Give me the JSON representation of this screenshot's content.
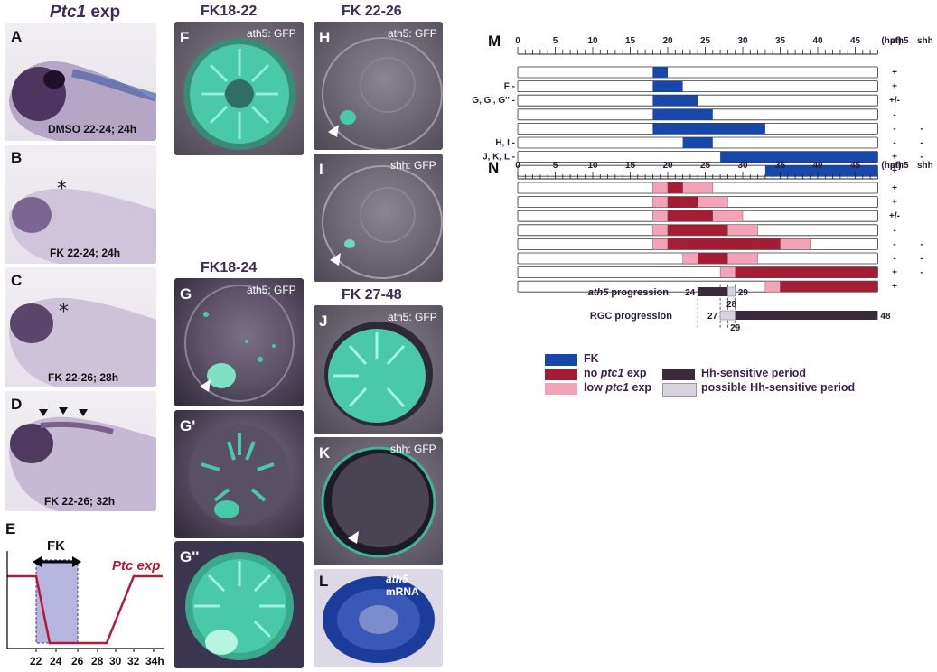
{
  "column_a": {
    "title_gene": "Ptc1",
    "title_rest": " exp"
  },
  "panels_a_d": [
    {
      "letter": "A",
      "caption": "DMSO 22-24; 24h"
    },
    {
      "letter": "B",
      "caption": "FK 22-24; 24h"
    },
    {
      "letter": "C",
      "caption": "FK 22-26; 28h"
    },
    {
      "letter": "D",
      "caption": "FK 22-26; 32h"
    }
  ],
  "panel_e": {
    "letter": "E",
    "fk_label": "FK",
    "ptc_label": "Ptc exp",
    "ticks": [
      "22",
      "24",
      "26",
      "28",
      "30",
      "32",
      "34h"
    ]
  },
  "column_f": {
    "title": "FK18-22",
    "letter": "F",
    "label": "ath5: GFP"
  },
  "column_g": {
    "title": "FK18-24",
    "letters": [
      "G",
      "G'",
      "G''"
    ],
    "label": "ath5: GFP"
  },
  "column_h": {
    "title": "FK 22-26",
    "h_letter": "H",
    "h_label": "ath5: GFP",
    "i_letter": "I",
    "i_label": "shh: GFP"
  },
  "column_j": {
    "title": "FK 27-48",
    "j_letter": "J",
    "j_label": "ath5: GFP",
    "k_letter": "K",
    "k_label": "shh: GFP",
    "l_letter": "L",
    "l_label_gene": "ath5",
    "l_label_rest": " mRNA"
  },
  "panel_m": {
    "letter": "M",
    "axis_ticks": [
      "0",
      "5",
      "10",
      "15",
      "20",
      "25",
      "30",
      "35",
      "40",
      "45"
    ],
    "axis_unit": "(hpf)",
    "col_headers": [
      "ath5",
      "shh"
    ],
    "row_labels": [
      "",
      "F",
      "G, G', G''",
      "",
      "",
      "H, I",
      "J, K, L",
      ""
    ],
    "rows": [
      {
        "fk": [
          18,
          20
        ],
        "ath5": "+",
        "shh": ""
      },
      {
        "fk": [
          18,
          22
        ],
        "ath5": "+",
        "shh": ""
      },
      {
        "fk": [
          18,
          24
        ],
        "ath5": "+/-",
        "shh": ""
      },
      {
        "fk": [
          18,
          26
        ],
        "ath5": "-",
        "shh": ""
      },
      {
        "fk": [
          18,
          33
        ],
        "ath5": "-",
        "shh": "-"
      },
      {
        "fk": [
          22,
          26
        ],
        "ath5": "-",
        "shh": "-"
      },
      {
        "fk": [
          27,
          48
        ],
        "ath5": "+",
        "shh": "-"
      },
      {
        "fk": [
          33,
          48
        ],
        "ath5": "+",
        "shh": ""
      }
    ]
  },
  "panel_n": {
    "letter": "N",
    "axis_ticks": [
      "0",
      "5",
      "10",
      "15",
      "20",
      "25",
      "30",
      "35",
      "40",
      "45"
    ],
    "axis_unit": "(hpf)",
    "col_headers": [
      "ath5",
      "shh"
    ],
    "rows": [
      {
        "segments": [
          [
            18,
            20,
            "low"
          ],
          [
            20,
            22,
            "no"
          ],
          [
            22,
            26,
            "low"
          ]
        ],
        "ath5": "+",
        "shh": ""
      },
      {
        "segments": [
          [
            18,
            20,
            "low"
          ],
          [
            20,
            24,
            "no"
          ],
          [
            24,
            28,
            "low"
          ]
        ],
        "ath5": "+",
        "shh": ""
      },
      {
        "segments": [
          [
            18,
            20,
            "low"
          ],
          [
            20,
            26,
            "no"
          ],
          [
            26,
            30,
            "low"
          ]
        ],
        "ath5": "+/-",
        "shh": ""
      },
      {
        "segments": [
          [
            18,
            20,
            "low"
          ],
          [
            20,
            28,
            "no"
          ],
          [
            28,
            32,
            "low"
          ]
        ],
        "ath5": "-",
        "shh": ""
      },
      {
        "segments": [
          [
            18,
            20,
            "low"
          ],
          [
            20,
            35,
            "no"
          ],
          [
            35,
            39,
            "low"
          ]
        ],
        "ath5": "-",
        "shh": "-"
      },
      {
        "segments": [
          [
            22,
            24,
            "low"
          ],
          [
            24,
            28,
            "no"
          ],
          [
            28,
            32,
            "low"
          ]
        ],
        "ath5": "-",
        "shh": "-"
      },
      {
        "segments": [
          [
            27,
            29,
            "low"
          ],
          [
            29,
            48,
            "no"
          ]
        ],
        "ath5": "+",
        "shh": "-"
      },
      {
        "segments": [
          [
            33,
            35,
            "low"
          ],
          [
            35,
            48,
            "no"
          ]
        ],
        "ath5": "+",
        "shh": ""
      }
    ],
    "dashed_at": [
      24,
      27,
      28,
      29
    ],
    "ath5_progression": {
      "label_gene": "ath5",
      "label_rest": " progression",
      "start": "24",
      "end": "29",
      "mid": "28"
    },
    "rgc_progression": {
      "label": "RGC progression",
      "start": "27",
      "end": "48",
      "mid": "29"
    }
  },
  "legend": {
    "fk": "FK",
    "no_ptc_pre": "no ",
    "no_ptc_gene": "ptc1",
    "no_ptc_post": " exp",
    "low_ptc_pre": "low ",
    "low_ptc_gene": "ptc1",
    "low_ptc_post": " exp",
    "hh_sensitive": "Hh-sensitive period",
    "possible_hh": "possible Hh-sensitive period"
  },
  "colors": {
    "fk_blue": "#1747a8",
    "no_ptc_red": "#a51d35",
    "low_ptc_pink": "#f4a2b8",
    "hh_dark": "#3b2a3b",
    "hh_possible": "#d6d3de",
    "gfp_teal": "#49c9a8"
  }
}
